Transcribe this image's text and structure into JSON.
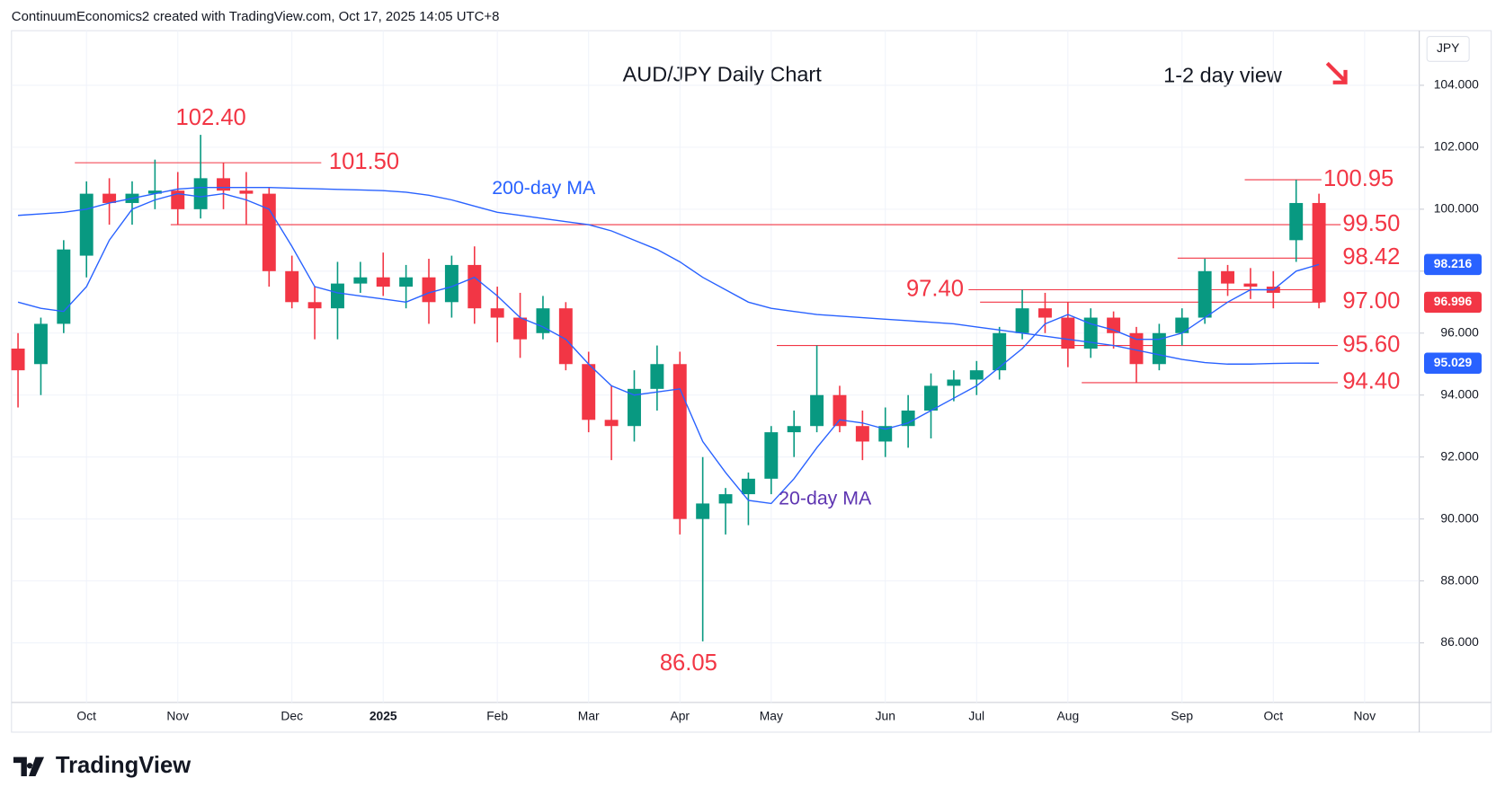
{
  "chart_data": {
    "type": "candlestick",
    "header": "ContinuumEconomics2 created with TradingView.com, Oct 17, 2025 14:05 UTC+8",
    "title": "AUD/JPY Daily Chart",
    "subtitle": "1-2 day view",
    "currency": "JPY",
    "branding": "TradingView",
    "categories": [
      null,
      null,
      null,
      "Oct",
      null,
      null,
      null,
      "Nov",
      null,
      null,
      null,
      null,
      "Dec",
      null,
      null,
      null,
      "2025",
      null,
      null,
      null,
      null,
      "Feb",
      null,
      null,
      null,
      "Mar",
      null,
      null,
      null,
      "Apr",
      null,
      null,
      null,
      "May",
      null,
      null,
      null,
      null,
      "Jun",
      null,
      null,
      null,
      "Jul",
      null,
      null,
      null,
      "Aug",
      null,
      null,
      null,
      null,
      "Sep",
      null,
      null,
      null,
      "Oct",
      null,
      null,
      null,
      "Nov",
      null
    ],
    "open": [
      95.5,
      95.0,
      96.3,
      98.5,
      100.5,
      100.2,
      100.5,
      100.6,
      100.0,
      101.0,
      100.6,
      100.5,
      98.0,
      97.0,
      96.8,
      97.6,
      97.8,
      97.5,
      97.8,
      97.0,
      98.2,
      96.8,
      96.5,
      96.0,
      96.8,
      95.0,
      93.2,
      93.0,
      94.2,
      95.0,
      90.0,
      90.5,
      90.8,
      91.3,
      92.8,
      93.0,
      94.0,
      93.0,
      92.5,
      93.0,
      93.5,
      94.3,
      94.5,
      94.8,
      96.0,
      96.8,
      96.5,
      95.5,
      96.5,
      96.0,
      95.0,
      96.0,
      96.5,
      98.0,
      97.6,
      97.5,
      99.0,
      100.2,
      null,
      null,
      null
    ],
    "high": [
      96.0,
      96.5,
      99.0,
      100.9,
      101.0,
      100.9,
      101.6,
      101.2,
      102.4,
      101.5,
      101.2,
      100.7,
      98.5,
      97.5,
      98.3,
      98.3,
      98.6,
      98.2,
      98.4,
      98.5,
      98.8,
      97.5,
      97.3,
      97.2,
      97.0,
      95.4,
      94.3,
      94.8,
      95.6,
      95.4,
      92.0,
      91.0,
      91.5,
      93.0,
      93.5,
      95.6,
      94.3,
      93.5,
      93.6,
      94.0,
      94.7,
      94.8,
      95.1,
      96.2,
      97.4,
      97.3,
      97.0,
      96.8,
      96.7,
      96.2,
      96.3,
      96.8,
      98.4,
      98.2,
      98.1,
      98.0,
      100.95,
      100.5,
      null,
      null,
      null
    ],
    "low": [
      93.6,
      94.0,
      96.0,
      97.8,
      99.5,
      99.5,
      100.0,
      99.5,
      99.7,
      100.0,
      99.5,
      97.5,
      96.8,
      95.8,
      95.8,
      97.3,
      97.2,
      96.8,
      96.3,
      96.5,
      96.3,
      95.7,
      95.2,
      95.8,
      94.8,
      92.8,
      91.9,
      92.5,
      93.5,
      89.5,
      86.05,
      89.5,
      89.8,
      90.8,
      92.0,
      92.8,
      92.8,
      91.9,
      92.0,
      92.3,
      92.6,
      93.8,
      94.0,
      94.5,
      95.8,
      96.0,
      94.9,
      95.2,
      95.5,
      94.4,
      94.8,
      95.6,
      96.3,
      97.2,
      97.1,
      96.8,
      98.3,
      96.8,
      null,
      null,
      null
    ],
    "close": [
      94.8,
      96.3,
      98.7,
      100.5,
      100.2,
      100.5,
      100.6,
      100.0,
      101.0,
      100.6,
      100.5,
      98.0,
      97.0,
      96.8,
      97.6,
      97.8,
      97.5,
      97.8,
      97.0,
      98.2,
      96.8,
      96.5,
      95.8,
      96.8,
      95.0,
      93.2,
      93.0,
      94.2,
      95.0,
      90.0,
      90.5,
      90.8,
      91.3,
      92.8,
      93.0,
      94.0,
      93.0,
      92.5,
      93.0,
      93.5,
      94.3,
      94.5,
      94.8,
      96.0,
      96.8,
      96.5,
      95.5,
      96.5,
      96.0,
      95.0,
      96.0,
      96.5,
      98.0,
      97.6,
      97.5,
      97.3,
      100.2,
      96.996,
      null,
      null,
      null
    ],
    "up_color": "#089981",
    "down_color": "#f23645",
    "series": [
      {
        "name": "20-day MA",
        "color": "#2962ff",
        "label_color": "#5e35b1",
        "values": [
          97.0,
          96.8,
          96.7,
          97.5,
          99.0,
          100.0,
          100.3,
          100.5,
          100.4,
          100.5,
          100.3,
          100.0,
          98.8,
          97.5,
          97.3,
          97.2,
          97.1,
          97.0,
          97.3,
          97.5,
          97.8,
          97.2,
          96.5,
          96.2,
          95.8,
          95.0,
          94.3,
          94.0,
          94.1,
          94.2,
          92.5,
          91.5,
          90.6,
          90.5,
          91.3,
          92.3,
          93.2,
          93.1,
          92.9,
          93.1,
          93.5,
          93.9,
          94.3,
          94.9,
          95.5,
          96.3,
          96.6,
          96.3,
          96.1,
          95.8,
          95.8,
          96.0,
          96.5,
          97.0,
          97.4,
          97.4,
          98.0,
          98.216,
          null,
          null,
          null
        ]
      },
      {
        "name": "200-day MA",
        "color": "#2962ff",
        "label_color": "#2962ff",
        "values": [
          99.8,
          99.85,
          99.9,
          100.0,
          100.2,
          100.35,
          100.5,
          100.65,
          100.7,
          100.7,
          100.7,
          100.7,
          100.68,
          100.66,
          100.64,
          100.62,
          100.6,
          100.55,
          100.45,
          100.3,
          100.1,
          99.9,
          99.8,
          99.7,
          99.6,
          99.5,
          99.3,
          99.0,
          98.7,
          98.3,
          97.8,
          97.4,
          97.0,
          96.8,
          96.7,
          96.6,
          96.55,
          96.5,
          96.45,
          96.4,
          96.35,
          96.3,
          96.2,
          96.1,
          96.0,
          95.9,
          95.8,
          95.7,
          95.6,
          95.45,
          95.3,
          95.15,
          95.05,
          95.0,
          95.0,
          95.02,
          95.03,
          95.029,
          null,
          null,
          null
        ]
      }
    ],
    "ylim": [
      84.17,
      105.67
    ],
    "yticks": [
      {
        "value": 86,
        "label": "86.000"
      },
      {
        "value": 88,
        "label": "88.000"
      },
      {
        "value": 90,
        "label": "90.000"
      },
      {
        "value": 92,
        "label": "92.000"
      },
      {
        "value": 94,
        "label": "94.000"
      },
      {
        "value": 96,
        "label": "96.000"
      },
      {
        "value": 98,
        "label": "98.000"
      },
      {
        "value": 100,
        "label": "100.000"
      },
      {
        "value": 102,
        "label": "102.000"
      },
      {
        "value": 104,
        "label": "104.000"
      }
    ],
    "level_color": "#f23645",
    "levels": [
      {
        "value": 101.5,
        "label": "101.50"
      },
      {
        "value": 100.95,
        "label": "100.95"
      },
      {
        "value": 99.5,
        "label": "99.50"
      },
      {
        "value": 98.42,
        "label": "98.42"
      },
      {
        "value": 97.4,
        "label": "97.40"
      },
      {
        "value": 97.0,
        "label": "97.00"
      },
      {
        "value": 95.6,
        "label": "95.60"
      },
      {
        "value": 94.4,
        "label": "94.40"
      }
    ],
    "annotations": [
      {
        "value": 102.4,
        "label": "102.40"
      },
      {
        "value": 86.05,
        "label": "86.05"
      }
    ]
  }
}
